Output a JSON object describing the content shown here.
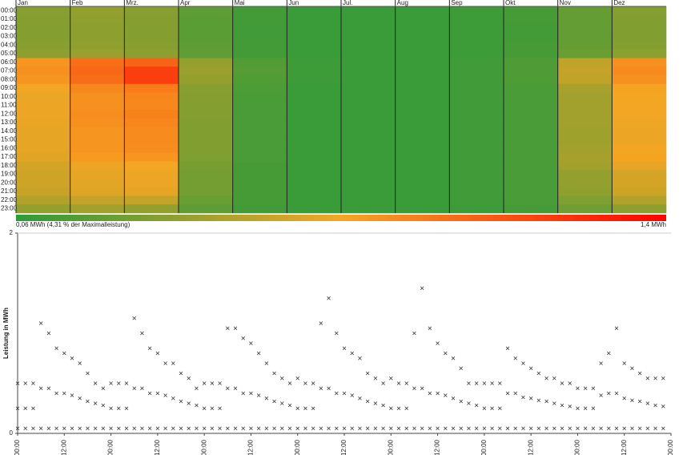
{
  "chart_data": [
    {
      "type": "heatmap",
      "categories": [
        "Jan",
        "Feb",
        "Mrz.",
        "Apr",
        "Mai",
        "Jun",
        "Jul.",
        "Aug",
        "Sep",
        "Okt",
        "Nov",
        "Dez"
      ],
      "rows": [
        "00:00",
        "01:00",
        "02:00",
        "03:00",
        "04:00",
        "05:00",
        "06:00",
        "07:00",
        "08:00",
        "09:00",
        "10:00",
        "11:00",
        "12:00",
        "13:00",
        "14:00",
        "15:00",
        "16:00",
        "17:00",
        "18:00",
        "19:00",
        "20:00",
        "21:00",
        "22:00",
        "23:00"
      ],
      "values": [
        [
          0.36,
          0.4,
          0.36,
          0.22,
          0.13,
          0.1,
          0.1,
          0.1,
          0.11,
          0.14,
          0.25,
          0.35
        ],
        [
          0.35,
          0.39,
          0.35,
          0.21,
          0.13,
          0.1,
          0.1,
          0.1,
          0.11,
          0.14,
          0.24,
          0.34
        ],
        [
          0.35,
          0.38,
          0.35,
          0.21,
          0.12,
          0.1,
          0.1,
          0.1,
          0.11,
          0.13,
          0.24,
          0.34
        ],
        [
          0.35,
          0.38,
          0.35,
          0.21,
          0.12,
          0.1,
          0.1,
          0.1,
          0.11,
          0.13,
          0.24,
          0.34
        ],
        [
          0.36,
          0.39,
          0.36,
          0.22,
          0.13,
          0.1,
          0.1,
          0.1,
          0.11,
          0.14,
          0.25,
          0.35
        ],
        [
          0.38,
          0.42,
          0.38,
          0.23,
          0.13,
          0.1,
          0.1,
          0.1,
          0.11,
          0.14,
          0.26,
          0.37
        ],
        [
          0.8,
          0.95,
          1.0,
          0.4,
          0.18,
          0.11,
          0.1,
          0.1,
          0.12,
          0.17,
          0.55,
          0.82
        ],
        [
          0.82,
          0.98,
          1.15,
          0.42,
          0.19,
          0.11,
          0.1,
          0.1,
          0.12,
          0.17,
          0.57,
          0.84
        ],
        [
          0.8,
          0.96,
          1.15,
          0.4,
          0.18,
          0.11,
          0.1,
          0.1,
          0.12,
          0.17,
          0.55,
          0.82
        ],
        [
          0.72,
          0.85,
          0.9,
          0.36,
          0.16,
          0.1,
          0.1,
          0.1,
          0.12,
          0.15,
          0.47,
          0.74
        ],
        [
          0.7,
          0.82,
          0.86,
          0.35,
          0.15,
          0.1,
          0.1,
          0.1,
          0.12,
          0.15,
          0.45,
          0.72
        ],
        [
          0.7,
          0.82,
          0.85,
          0.35,
          0.15,
          0.1,
          0.1,
          0.1,
          0.12,
          0.15,
          0.45,
          0.72
        ],
        [
          0.7,
          0.83,
          0.88,
          0.35,
          0.15,
          0.1,
          0.1,
          0.1,
          0.12,
          0.15,
          0.45,
          0.72
        ],
        [
          0.69,
          0.82,
          0.86,
          0.34,
          0.15,
          0.1,
          0.1,
          0.1,
          0.12,
          0.15,
          0.45,
          0.71
        ],
        [
          0.68,
          0.8,
          0.84,
          0.34,
          0.15,
          0.1,
          0.1,
          0.1,
          0.12,
          0.15,
          0.44,
          0.7
        ],
        [
          0.68,
          0.8,
          0.84,
          0.34,
          0.15,
          0.1,
          0.1,
          0.1,
          0.12,
          0.15,
          0.44,
          0.7
        ],
        [
          0.68,
          0.8,
          0.83,
          0.34,
          0.15,
          0.1,
          0.1,
          0.1,
          0.12,
          0.15,
          0.45,
          0.72
        ],
        [
          0.66,
          0.78,
          0.8,
          0.33,
          0.15,
          0.1,
          0.1,
          0.1,
          0.12,
          0.15,
          0.46,
          0.74
        ],
        [
          0.62,
          0.7,
          0.72,
          0.31,
          0.14,
          0.1,
          0.1,
          0.1,
          0.12,
          0.15,
          0.45,
          0.68
        ],
        [
          0.6,
          0.68,
          0.7,
          0.3,
          0.14,
          0.1,
          0.1,
          0.1,
          0.12,
          0.15,
          0.4,
          0.62
        ],
        [
          0.6,
          0.67,
          0.7,
          0.3,
          0.14,
          0.1,
          0.1,
          0.1,
          0.12,
          0.15,
          0.4,
          0.62
        ],
        [
          0.58,
          0.66,
          0.68,
          0.29,
          0.14,
          0.1,
          0.1,
          0.1,
          0.12,
          0.15,
          0.39,
          0.6
        ],
        [
          0.5,
          0.56,
          0.56,
          0.26,
          0.14,
          0.1,
          0.1,
          0.1,
          0.12,
          0.15,
          0.33,
          0.5
        ],
        [
          0.4,
          0.45,
          0.4,
          0.22,
          0.13,
          0.1,
          0.1,
          0.1,
          0.11,
          0.14,
          0.28,
          0.38
        ]
      ],
      "colorscale": [
        "#2e9a3a",
        "#f5a623",
        "#ff0000"
      ],
      "colorbar": [
        {
          "value": 0.06,
          "label": "0,06 MWh (4,31 % der Maximalleistung)"
        },
        {
          "value": 1.4,
          "label": "1,4 MWh"
        }
      ]
    },
    {
      "type": "scatter",
      "ylabel": "Leistung in MWh",
      "color": "#333333",
      "x": [
        0,
        2,
        4,
        6,
        8,
        10,
        12,
        14,
        16,
        18,
        20,
        22,
        24,
        26,
        28,
        30,
        32,
        34,
        36,
        38,
        40,
        42,
        44,
        46,
        48,
        50,
        52,
        54,
        56,
        58,
        60,
        62,
        64,
        66,
        68,
        70,
        72,
        74,
        76,
        78,
        80,
        82,
        84,
        86,
        88,
        90,
        92,
        94,
        96,
        98,
        100,
        102,
        104,
        106,
        108,
        110,
        112,
        114,
        116,
        118,
        120,
        122,
        124,
        126,
        128,
        130,
        132,
        134,
        136,
        138,
        140,
        142,
        144,
        146,
        148,
        150,
        152,
        154,
        156,
        158,
        160,
        162,
        164,
        166
      ],
      "series": [
        {
          "values": [
            0.05,
            0.05,
            0.05,
            0.05,
            0.05,
            0.05,
            0.05,
            0.05,
            0.05,
            0.05,
            0.05,
            0.05,
            0.05,
            0.05,
            0.05,
            0.05,
            0.05,
            0.05,
            0.05,
            0.05,
            0.05,
            0.05,
            0.05,
            0.05,
            0.05,
            0.05,
            0.05,
            0.05,
            0.05,
            0.05,
            0.05,
            0.05,
            0.05,
            0.05,
            0.05,
            0.05,
            0.05,
            0.05,
            0.05,
            0.05,
            0.05,
            0.05,
            0.05,
            0.05,
            0.05,
            0.05,
            0.05,
            0.05,
            0.05,
            0.05,
            0.05,
            0.05,
            0.05,
            0.05,
            0.05,
            0.05,
            0.05,
            0.05,
            0.05,
            0.05,
            0.05,
            0.05,
            0.05,
            0.05,
            0.05,
            0.05,
            0.05,
            0.05,
            0.05,
            0.05,
            0.05,
            0.05,
            0.05,
            0.05,
            0.05,
            0.05,
            0.05,
            0.05,
            0.05,
            0.05,
            0.05,
            0.05,
            0.05,
            0.05
          ]
        },
        {
          "values": [
            0.25,
            0.25,
            0.25,
            0.45,
            0.45,
            0.4,
            0.4,
            0.38,
            0.35,
            0.32,
            0.3,
            0.28,
            0.25,
            0.25,
            0.25,
            0.45,
            0.45,
            0.4,
            0.4,
            0.38,
            0.35,
            0.32,
            0.3,
            0.28,
            0.25,
            0.25,
            0.25,
            0.45,
            0.45,
            0.4,
            0.4,
            0.38,
            0.35,
            0.32,
            0.3,
            0.28,
            0.25,
            0.25,
            0.25,
            0.45,
            0.45,
            0.4,
            0.4,
            0.38,
            0.35,
            0.32,
            0.3,
            0.28,
            0.25,
            0.25,
            0.25,
            0.45,
            0.45,
            0.4,
            0.4,
            0.38,
            0.35,
            0.32,
            0.3,
            0.28,
            0.25,
            0.25,
            0.25,
            0.4,
            0.4,
            0.36,
            0.35,
            0.33,
            0.32,
            0.3,
            0.28,
            0.27,
            0.25,
            0.25,
            0.25,
            0.38,
            0.4,
            0.4,
            0.35,
            0.33,
            0.32,
            0.3,
            0.28,
            0.27
          ]
        },
        {
          "values": [
            0.5,
            0.5,
            0.5,
            1.1,
            1.0,
            0.85,
            0.8,
            0.75,
            0.7,
            0.6,
            0.5,
            0.45,
            0.5,
            0.5,
            0.5,
            1.15,
            1.0,
            0.85,
            0.8,
            0.7,
            0.7,
            0.6,
            0.55,
            0.45,
            0.5,
            0.5,
            0.5,
            1.05,
            1.05,
            0.95,
            0.9,
            0.8,
            0.7,
            0.6,
            0.55,
            0.5,
            0.55,
            0.5,
            0.5,
            1.1,
            1.35,
            1.0,
            0.85,
            0.8,
            0.75,
            0.6,
            0.55,
            0.5,
            0.55,
            0.5,
            0.5,
            1.0,
            1.45,
            1.05,
            0.9,
            0.8,
            0.75,
            0.65,
            0.5,
            0.5,
            0.5,
            0.5,
            0.5,
            0.85,
            0.75,
            0.7,
            0.65,
            0.6,
            0.55,
            0.55,
            0.5,
            0.5,
            0.45,
            0.45,
            0.45,
            0.7,
            0.8,
            1.05,
            0.7,
            0.65,
            0.6,
            0.55,
            0.55,
            0.55
          ]
        }
      ],
      "xlim": [
        0,
        168
      ],
      "xticks": [
        {
          "value": 0,
          "label": "00:00"
        },
        {
          "value": 12,
          "label": "12:00"
        },
        {
          "value": 24,
          "label": "00:00"
        },
        {
          "value": 36,
          "label": "12:00"
        },
        {
          "value": 48,
          "label": "00:00"
        },
        {
          "value": 60,
          "label": "12:00"
        },
        {
          "value": 72,
          "label": "00:00"
        },
        {
          "value": 84,
          "label": "12:00"
        },
        {
          "value": 96,
          "label": "00:00"
        },
        {
          "value": 108,
          "label": "12:00"
        },
        {
          "value": 120,
          "label": "00:00"
        },
        {
          "value": 132,
          "label": "12:00"
        },
        {
          "value": 144,
          "label": "00:00"
        },
        {
          "value": 156,
          "label": "12:00"
        },
        {
          "value": 168,
          "label": "00:00"
        }
      ],
      "ylim": [
        0,
        2
      ],
      "yticks": [
        0,
        2
      ]
    }
  ]
}
